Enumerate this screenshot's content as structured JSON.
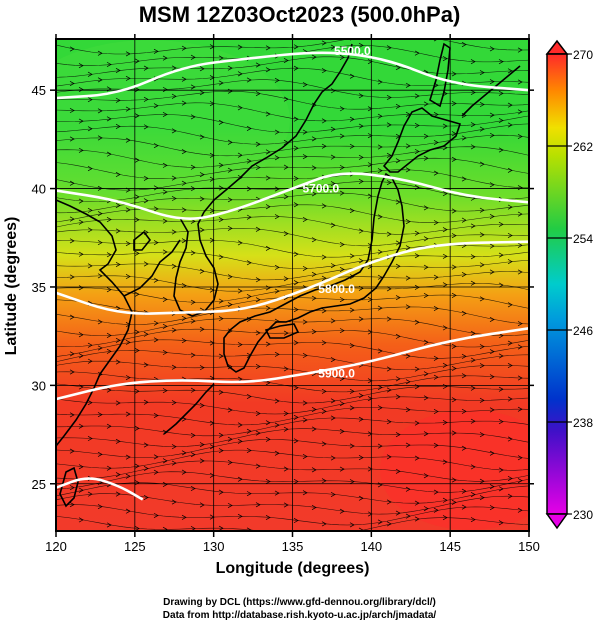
{
  "title": "MSM 12Z03Oct2023 (500.0hPa)",
  "x_axis": {
    "label": "Longitude (degrees)",
    "ticks": [
      "120",
      "125",
      "130",
      "135",
      "140",
      "145",
      "150"
    ],
    "tick_values": [
      120,
      125,
      130,
      135,
      140,
      145,
      150
    ],
    "range": [
      120,
      150
    ]
  },
  "y_axis": {
    "label": "Latitude  (degrees)",
    "ticks": [
      "25",
      "30",
      "35",
      "40",
      "45"
    ],
    "tick_values": [
      25,
      30,
      35,
      40,
      45
    ],
    "range": [
      22.6,
      47.6
    ]
  },
  "colorbar": {
    "ticks": [
      "230",
      "238",
      "246",
      "254",
      "262",
      "270"
    ],
    "tick_values": [
      230,
      238,
      246,
      254,
      262,
      270
    ],
    "range": [
      230,
      270
    ],
    "colormap": [
      "#e600e6",
      "#0033cc",
      "#00cccc",
      "#22cc44",
      "#e8e000",
      "#ff8800",
      "#ff2a2a"
    ],
    "extend": "both"
  },
  "contours": [
    {
      "label": "5500.0",
      "path_lon_lat": [
        [
          120,
          44.6
        ],
        [
          124,
          44.8
        ],
        [
          128,
          46.2
        ],
        [
          132,
          46.6
        ],
        [
          137,
          47.0
        ],
        [
          141,
          46.6
        ],
        [
          145,
          45.3
        ],
        [
          150,
          45.0
        ]
      ]
    },
    {
      "label": "5700.0",
      "path_lon_lat": [
        [
          120,
          39.9
        ],
        [
          124,
          39.4
        ],
        [
          128,
          38.3
        ],
        [
          131,
          38.8
        ],
        [
          135,
          40.0
        ],
        [
          138,
          40.9
        ],
        [
          142,
          40.5
        ],
        [
          146,
          39.6
        ],
        [
          150,
          39.3
        ]
      ]
    },
    {
      "label": "5800.0",
      "path_lon_lat": [
        [
          120,
          34.7
        ],
        [
          124,
          33.6
        ],
        [
          128,
          33.7
        ],
        [
          132,
          33.8
        ],
        [
          136,
          34.9
        ],
        [
          140,
          36.3
        ],
        [
          144,
          37.2
        ],
        [
          150,
          37.3
        ]
      ]
    },
    {
      "label": "5900.0",
      "path_lon_lat": [
        [
          120,
          29.3
        ],
        [
          124,
          30.1
        ],
        [
          128,
          30.3
        ],
        [
          132,
          30.1
        ],
        [
          136,
          30.6
        ],
        [
          140,
          31.2
        ],
        [
          145,
          32.3
        ],
        [
          150,
          32.9
        ]
      ]
    },
    {
      "label": "",
      "path_lon_lat": [
        [
          120,
          24.8
        ],
        [
          122,
          25.4
        ],
        [
          124,
          24.9
        ],
        [
          125.5,
          24.2
        ]
      ]
    }
  ],
  "credits": {
    "line1": "Drawing by DCL (https://www.gfd-dennou.org/library/dcl/)",
    "line2": "Data from http://database.rish.kyoto-u.ac.jp/arch/jmadata/"
  }
}
